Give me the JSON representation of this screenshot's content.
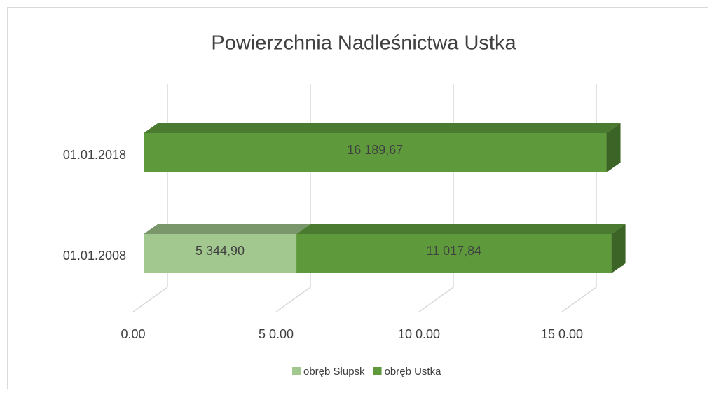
{
  "chart_data": {
    "type": "bar",
    "orientation": "horizontal",
    "stacked": true,
    "three_d": true,
    "title": "Powierzchnia Nadleśnictwa Ustka",
    "categories": [
      "01.01.2018",
      "01.01.2008"
    ],
    "series": [
      {
        "name": "obręb Słupsk",
        "color": "#a2c88f",
        "values": [
          null,
          5344.9
        ],
        "value_labels": [
          null,
          "5 344,90"
        ]
      },
      {
        "name": "obręb Ustka",
        "color": "#5e9a3c",
        "values": [
          16189.67,
          11017.84
        ],
        "value_labels": [
          "16 189,67",
          "11 017,84"
        ]
      }
    ],
    "xlim": [
      0,
      17500
    ],
    "xticks": [
      {
        "value": 0,
        "label": "0.00"
      },
      {
        "value": 5000,
        "label": "5 0.00"
      },
      {
        "value": 10000,
        "label": "10 0.00"
      },
      {
        "value": 15000,
        "label": "15 0.00"
      }
    ],
    "grid": true,
    "legend": "bottom"
  }
}
